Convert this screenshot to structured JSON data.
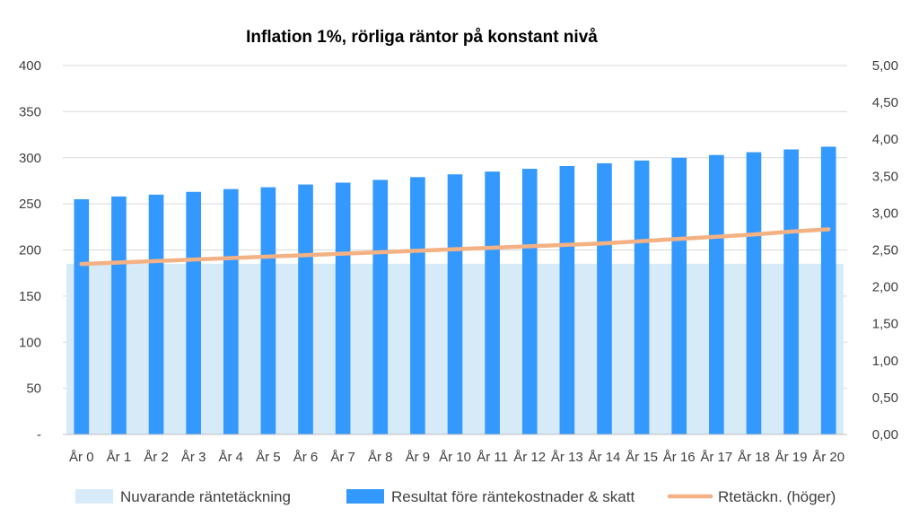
{
  "chart_data": {
    "type": "bar",
    "title": "Inflation 1%, rörliga räntor på konstant nivå",
    "categories": [
      "År 0",
      "År 1",
      "År 2",
      "År 3",
      "År 4",
      "År 5",
      "År 6",
      "År 7",
      "År 8",
      "År 9",
      "År 10",
      "År 11",
      "År 12",
      "År 13",
      "År 14",
      "År 15",
      "År 16",
      "År 17",
      "År 18",
      "År 19",
      "År 20"
    ],
    "series": [
      {
        "name": "Nuvarande räntetäckning",
        "kind": "area",
        "axis": "left",
        "color": "#d6eaf8",
        "values": [
          185,
          185,
          185,
          185,
          185,
          185,
          185,
          185,
          185,
          185,
          185,
          185,
          185,
          185,
          185,
          185,
          185,
          185,
          185,
          185,
          185
        ]
      },
      {
        "name": "Resultat före räntekostnader & skatt",
        "kind": "bar",
        "axis": "left",
        "color": "#3399ff",
        "values": [
          255,
          258,
          260,
          263,
          266,
          268,
          271,
          273,
          276,
          279,
          282,
          285,
          288,
          291,
          294,
          297,
          300,
          303,
          306,
          309,
          312
        ]
      },
      {
        "name": "Rtetäckn. (höger)",
        "kind": "line",
        "axis": "right",
        "color": "#f4b183",
        "values": [
          2.31,
          2.33,
          2.35,
          2.37,
          2.39,
          2.41,
          2.43,
          2.45,
          2.47,
          2.49,
          2.51,
          2.53,
          2.55,
          2.57,
          2.59,
          2.62,
          2.65,
          2.68,
          2.71,
          2.75,
          2.78
        ]
      }
    ],
    "y_left": {
      "ylim": [
        0,
        400
      ],
      "ticks": [
        0,
        50,
        100,
        150,
        200,
        250,
        300,
        350,
        400
      ],
      "tick_labels": [
        "-",
        "50",
        "100",
        "150",
        "200",
        "250",
        "300",
        "350",
        "400"
      ]
    },
    "y_right": {
      "ylim": [
        0,
        5
      ],
      "ticks": [
        0,
        0.5,
        1,
        1.5,
        2,
        2.5,
        3,
        3.5,
        4,
        4.5,
        5
      ],
      "tick_labels": [
        "0,00",
        "0,50",
        "1,00",
        "1,50",
        "2,00",
        "2,50",
        "3,00",
        "3,50",
        "4,00",
        "4,50",
        "5,00"
      ]
    },
    "grid": true,
    "legend_position": "bottom"
  }
}
